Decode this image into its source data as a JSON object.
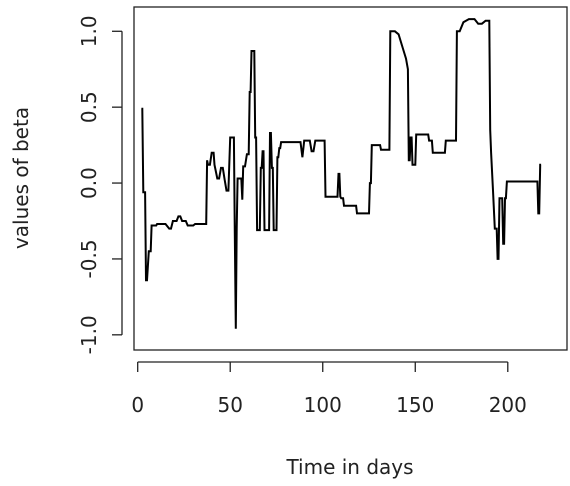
{
  "chart_data": {
    "type": "line",
    "title": "",
    "xlabel": "Time in days",
    "ylabel": "values of beta",
    "xlim": [
      -2,
      232
    ],
    "ylim": [
      -1.1,
      1.16
    ],
    "x_ticks": [
      0,
      50,
      100,
      150,
      200
    ],
    "y_ticks": [
      -1.0,
      -0.5,
      0.0,
      0.5,
      1.0
    ],
    "x_tick_labels": [
      "0",
      "50",
      "100",
      "150",
      "200"
    ],
    "y_tick_labels": [
      "-1.0",
      "-0.5",
      "0.0",
      "0.5",
      "1.0"
    ],
    "grid": false,
    "legend": "none",
    "line_color": "#000000",
    "series": [
      {
        "points": [
          [
            2,
            0.49
          ],
          [
            2.5,
            0.49
          ],
          [
            3,
            -0.06
          ],
          [
            4,
            -0.06
          ],
          [
            4.5,
            -0.64
          ],
          [
            5,
            -0.64
          ],
          [
            6,
            -0.45
          ],
          [
            7,
            -0.45
          ],
          [
            7.5,
            -0.28
          ],
          [
            10,
            -0.28
          ],
          [
            10.5,
            -0.27
          ],
          [
            15,
            -0.27
          ],
          [
            17,
            -0.3
          ],
          [
            18,
            -0.3
          ],
          [
            19,
            -0.25
          ],
          [
            21,
            -0.25
          ],
          [
            22,
            -0.22
          ],
          [
            23,
            -0.22
          ],
          [
            24,
            -0.25
          ],
          [
            26,
            -0.25
          ],
          [
            27,
            -0.28
          ],
          [
            30,
            -0.28
          ],
          [
            31,
            -0.27
          ],
          [
            37,
            -0.27
          ],
          [
            37.5,
            0.15
          ],
          [
            38,
            0.12
          ],
          [
            39,
            0.12
          ],
          [
            40,
            0.2
          ],
          [
            41,
            0.2
          ],
          [
            41.5,
            0.12
          ],
          [
            43,
            0.03
          ],
          [
            44,
            0.03
          ],
          [
            45,
            0.1
          ],
          [
            46,
            0.1
          ],
          [
            47,
            0.02
          ],
          [
            48,
            -0.05
          ],
          [
            49,
            -0.05
          ],
          [
            50,
            0.3
          ],
          [
            52,
            0.3
          ],
          [
            52.5,
            -0.33
          ],
          [
            53,
            -0.96
          ],
          [
            53.5,
            -0.3
          ],
          [
            54,
            0.03
          ],
          [
            56,
            0.03
          ],
          [
            56.5,
            -0.11
          ],
          [
            57,
            0.11
          ],
          [
            58,
            0.11
          ],
          [
            59,
            0.19
          ],
          [
            60,
            0.19
          ],
          [
            60.5,
            0.6
          ],
          [
            61,
            0.6
          ],
          [
            61.5,
            0.87
          ],
          [
            62,
            0.87
          ],
          [
            63,
            0.87
          ],
          [
            63.5,
            0.3
          ],
          [
            64,
            0.3
          ],
          [
            64.5,
            -0.31
          ],
          [
            66,
            -0.31
          ],
          [
            66.5,
            0.1
          ],
          [
            67,
            0.1
          ],
          [
            67.5,
            0.21
          ],
          [
            68,
            0.21
          ],
          [
            68.5,
            -0.31
          ],
          [
            71,
            -0.31
          ],
          [
            71.5,
            0.33
          ],
          [
            72,
            0.33
          ],
          [
            72.5,
            0.1
          ],
          [
            73,
            0.1
          ],
          [
            73.5,
            -0.31
          ],
          [
            75,
            -0.31
          ],
          [
            75.5,
            0.17
          ],
          [
            76,
            0.17
          ],
          [
            76.5,
            0.23
          ],
          [
            77,
            0.23
          ],
          [
            77.5,
            0.27
          ],
          [
            88,
            0.27
          ],
          [
            89,
            0.17
          ],
          [
            90,
            0.28
          ],
          [
            93,
            0.28
          ],
          [
            94,
            0.21
          ],
          [
            95,
            0.21
          ],
          [
            96,
            0.28
          ],
          [
            101,
            0.28
          ],
          [
            101.5,
            -0.09
          ],
          [
            108,
            -0.09
          ],
          [
            108.5,
            0.06
          ],
          [
            109,
            0.06
          ],
          [
            109.5,
            -0.09
          ],
          [
            110,
            -0.1
          ],
          [
            111,
            -0.1
          ],
          [
            111.5,
            -0.15
          ],
          [
            118,
            -0.15
          ],
          [
            118.5,
            -0.2
          ],
          [
            125,
            -0.2
          ],
          [
            125.5,
            0.0
          ],
          [
            126,
            0.0
          ],
          [
            126.5,
            0.25
          ],
          [
            131,
            0.25
          ],
          [
            131.5,
            0.22
          ],
          [
            136,
            0.22
          ],
          [
            136.5,
            1.0
          ],
          [
            139,
            1.0
          ],
          [
            141,
            0.98
          ],
          [
            143,
            0.9
          ],
          [
            145,
            0.82
          ],
          [
            146,
            0.75
          ],
          [
            146.5,
            0.15
          ],
          [
            147,
            0.15
          ],
          [
            147.5,
            0.3
          ],
          [
            148,
            0.3
          ],
          [
            148.5,
            0.12
          ],
          [
            150,
            0.12
          ],
          [
            150.5,
            0.32
          ],
          [
            157,
            0.32
          ],
          [
            157.5,
            0.28
          ],
          [
            159,
            0.28
          ],
          [
            159.5,
            0.2
          ],
          [
            166,
            0.2
          ],
          [
            166.5,
            0.28
          ],
          [
            172,
            0.28
          ],
          [
            172.5,
            1.0
          ],
          [
            174,
            1.0
          ],
          [
            176,
            1.06
          ],
          [
            179,
            1.08
          ],
          [
            182,
            1.08
          ],
          [
            184,
            1.05
          ],
          [
            186,
            1.05
          ],
          [
            188,
            1.07
          ],
          [
            190,
            1.07
          ],
          [
            190.5,
            0.35
          ],
          [
            191,
            0.2
          ],
          [
            192,
            -0.05
          ],
          [
            193,
            -0.3
          ],
          [
            194,
            -0.3
          ],
          [
            194.5,
            -0.5
          ],
          [
            195,
            -0.5
          ],
          [
            195.5,
            -0.1
          ],
          [
            197,
            -0.1
          ],
          [
            197.5,
            -0.4
          ],
          [
            198,
            -0.4
          ],
          [
            198.5,
            -0.1
          ],
          [
            199,
            -0.1
          ],
          [
            199.5,
            0.01
          ],
          [
            216,
            0.01
          ],
          [
            216.5,
            -0.2
          ],
          [
            217,
            -0.2
          ],
          [
            217.5,
            0.12
          ],
          [
            218,
            0.12
          ]
        ]
      }
    ]
  }
}
